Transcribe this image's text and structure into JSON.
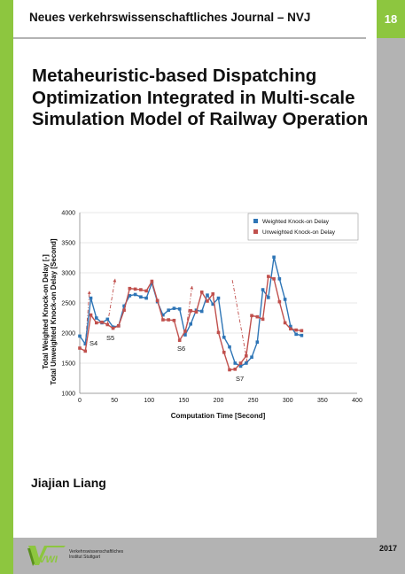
{
  "journal": {
    "name": "Neues verkehrswissenschaftliches Journal – NVJ",
    "number": "18"
  },
  "title": "Metaheuristic-based Dispatching Optimization Integrated in Multi-scale Simulation Model of Railway Operation",
  "author": "Jiajian Liang",
  "year": "2017",
  "logo": {
    "mark": "VWI",
    "line1": "Verkehrswissenschaftliches",
    "line2": "Institut Stuttgart"
  },
  "colors": {
    "green": "#8dc63f",
    "gray": "#b3b3b3",
    "series1": "#2e75b6",
    "series2": "#c0504d"
  },
  "chart_data": {
    "type": "line",
    "xlabel": "Computation Time [Second]",
    "ylabel_lines": [
      "Total Weighted Knock-on Delay [-]",
      "Total Unweighted Knock-on Delay [Second]"
    ],
    "xlim": [
      0,
      400
    ],
    "ylim": [
      1000,
      4000
    ],
    "xticks": [
      0,
      50,
      100,
      150,
      200,
      250,
      300,
      350,
      400
    ],
    "yticks": [
      1000,
      1500,
      2000,
      2500,
      3000,
      3500,
      4000
    ],
    "grid": true,
    "legend_position": "top-right",
    "series": [
      {
        "name": "Weighted Knock-on Delay",
        "points": [
          [
            0,
            1950
          ],
          [
            8,
            1820
          ],
          [
            16,
            2580
          ],
          [
            24,
            2250
          ],
          [
            32,
            2170
          ],
          [
            40,
            2230
          ],
          [
            48,
            2100
          ],
          [
            56,
            2120
          ],
          [
            64,
            2450
          ],
          [
            72,
            2620
          ],
          [
            80,
            2640
          ],
          [
            88,
            2600
          ],
          [
            96,
            2580
          ],
          [
            104,
            2830
          ],
          [
            112,
            2520
          ],
          [
            120,
            2300
          ],
          [
            128,
            2380
          ],
          [
            136,
            2410
          ],
          [
            144,
            2400
          ],
          [
            152,
            1970
          ],
          [
            160,
            2150
          ],
          [
            168,
            2380
          ],
          [
            176,
            2360
          ],
          [
            184,
            2630
          ],
          [
            192,
            2480
          ],
          [
            200,
            2580
          ],
          [
            208,
            1930
          ],
          [
            216,
            1770
          ],
          [
            224,
            1500
          ],
          [
            232,
            1450
          ],
          [
            240,
            1500
          ],
          [
            248,
            1600
          ],
          [
            256,
            1850
          ],
          [
            264,
            2720
          ],
          [
            272,
            2590
          ],
          [
            280,
            3260
          ],
          [
            288,
            2900
          ],
          [
            296,
            2560
          ],
          [
            304,
            2110
          ],
          [
            312,
            1980
          ],
          [
            320,
            1960
          ]
        ]
      },
      {
        "name": "Unweighted Knock-on Delay",
        "points": [
          [
            0,
            1750
          ],
          [
            8,
            1700
          ],
          [
            16,
            2300
          ],
          [
            24,
            2170
          ],
          [
            32,
            2180
          ],
          [
            40,
            2140
          ],
          [
            48,
            2080
          ],
          [
            56,
            2120
          ],
          [
            64,
            2380
          ],
          [
            72,
            2740
          ],
          [
            80,
            2730
          ],
          [
            88,
            2720
          ],
          [
            96,
            2700
          ],
          [
            104,
            2860
          ],
          [
            112,
            2540
          ],
          [
            120,
            2220
          ],
          [
            128,
            2220
          ],
          [
            136,
            2210
          ],
          [
            144,
            1880
          ],
          [
            152,
            2030
          ],
          [
            160,
            2370
          ],
          [
            168,
            2350
          ],
          [
            176,
            2680
          ],
          [
            184,
            2530
          ],
          [
            192,
            2650
          ],
          [
            200,
            2010
          ],
          [
            208,
            1680
          ],
          [
            216,
            1390
          ],
          [
            224,
            1400
          ],
          [
            232,
            1500
          ],
          [
            240,
            1620
          ],
          [
            248,
            2290
          ],
          [
            256,
            2270
          ],
          [
            264,
            2230
          ],
          [
            272,
            2940
          ],
          [
            280,
            2900
          ],
          [
            288,
            2520
          ],
          [
            296,
            2170
          ],
          [
            304,
            2070
          ],
          [
            312,
            2050
          ],
          [
            320,
            2040
          ]
        ]
      }
    ],
    "annotations": [
      "S4",
      "S5",
      "S6",
      "S7"
    ]
  }
}
